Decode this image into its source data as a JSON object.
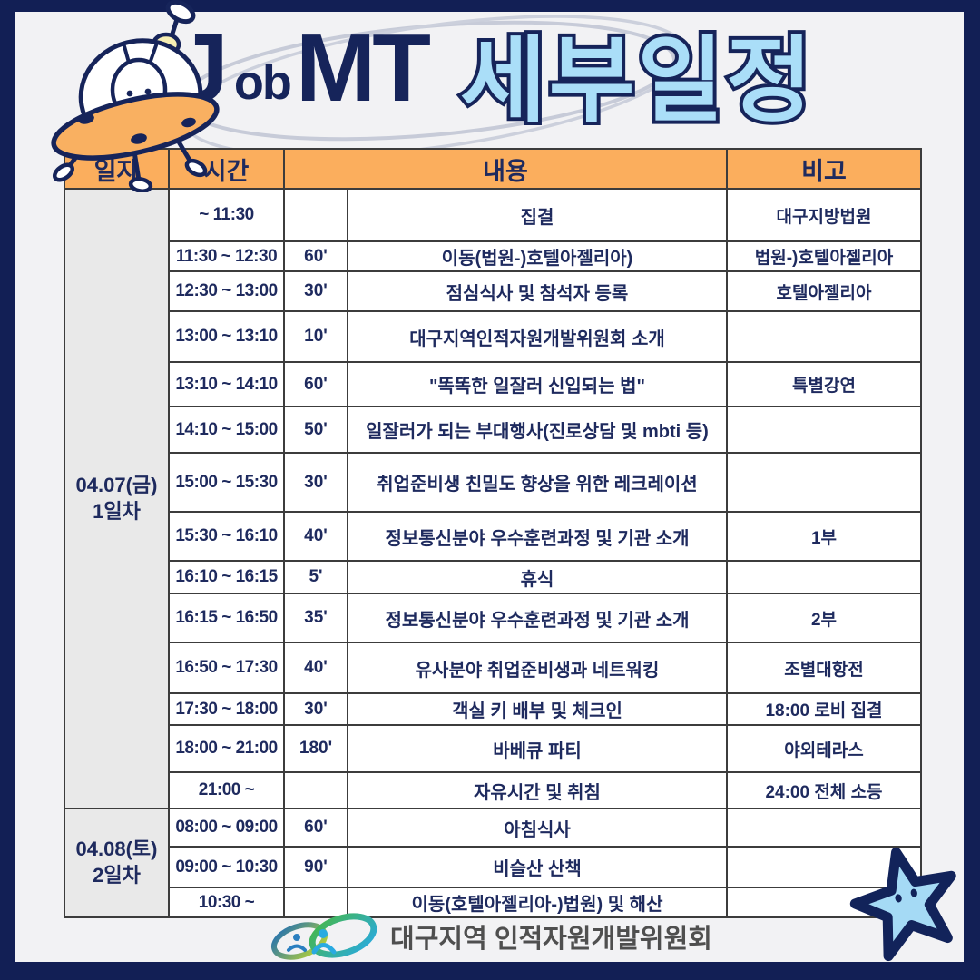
{
  "title": {
    "logo_j": "J",
    "logo_ob": "ob",
    "logo_mt": "MT",
    "subtitle": "세부일정"
  },
  "table": {
    "headers": [
      "일자",
      "시간",
      "내용",
      "비고"
    ],
    "days": [
      {
        "line1": "04.07(금)",
        "line2": "1일차",
        "row_count": 14
      },
      {
        "line1": "04.08(토)",
        "line2": "2일차",
        "row_count": 3
      }
    ],
    "rows": [
      {
        "time": "~ 11:30",
        "duration": "",
        "content": "집결",
        "remark": "대구지방법원"
      },
      {
        "time": "11:30 ~ 12:30",
        "duration": "60'",
        "content": "이동(법원-)호텔아젤리아)",
        "remark": "법원-)호텔아젤리아"
      },
      {
        "time": "12:30 ~ 13:00",
        "duration": "30'",
        "content": "점심식사 및 참석자 등록",
        "remark": "호텔아젤리아"
      },
      {
        "time": "13:00 ~ 13:10",
        "duration": "10'",
        "content": "대구지역인적자원개발위원회 소개",
        "remark": ""
      },
      {
        "time": "13:10 ~ 14:10",
        "duration": "60'",
        "content": "\"똑똑한 일잘러 신입되는 법\"",
        "remark": "특별강연"
      },
      {
        "time": "14:10 ~ 15:00",
        "duration": "50'",
        "content": "일잘러가 되는 부대행사(진로상담 및 mbti 등)",
        "remark": ""
      },
      {
        "time": "15:00 ~ 15:30",
        "duration": "30'",
        "content": "취업준비생 친밀도 향상을 위한 레크레이션",
        "remark": ""
      },
      {
        "time": "15:30 ~ 16:10",
        "duration": "40'",
        "content": "정보통신분야 우수훈련과정 및 기관 소개",
        "remark": "1부"
      },
      {
        "time": "16:10 ~ 16:15",
        "duration": "5'",
        "content": "휴식",
        "remark": ""
      },
      {
        "time": "16:15 ~ 16:50",
        "duration": "35'",
        "content": "정보통신분야 우수훈련과정 및 기관 소개",
        "remark": "2부"
      },
      {
        "time": "16:50 ~ 17:30",
        "duration": "40'",
        "content": "유사분야 취업준비생과 네트워킹",
        "remark": "조별대항전"
      },
      {
        "time": "17:30 ~ 18:00",
        "duration": "30'",
        "content": "객실 키 배부 및 체크인",
        "remark": "18:00 로비 집결"
      },
      {
        "time": "18:00 ~ 21:00",
        "duration": "180'",
        "content": "바베큐 파티",
        "remark": "야외테라스"
      },
      {
        "time": "21:00 ~",
        "duration": "",
        "content": "자유시간 및 취침",
        "remark": "24:00 전체 소등"
      },
      {
        "time": "08:00 ~ 09:00",
        "duration": "60'",
        "content": "아침식사",
        "remark": ""
      },
      {
        "time": "09:00 ~ 10:30",
        "duration": "90'",
        "content": "비슬산 산책",
        "remark": ""
      },
      {
        "time": "10:30 ~",
        "duration": "",
        "content": "이동(호텔아젤리아-)법원) 및 해산",
        "remark": ""
      }
    ]
  },
  "footer": {
    "org_name": "대구지역 인적자원개발위원회"
  },
  "colors": {
    "frame_navy": "#121f55",
    "text_navy": "#1e2a5e",
    "header_orange": "#fbae5d",
    "day_gray": "#e9e9e9",
    "page_bg": "#f2f2f4",
    "bubble_blue": "#aadef8",
    "star_blue": "#a5daf5",
    "ufo_orange": "#f9b061",
    "grid_line": "#3c3c3c",
    "org_text_gray": "#4f4f4f",
    "logo_blue": "#2a7fc0",
    "logo_green": "#46b749",
    "logo_sky": "#29aae1",
    "logo_lime": "#bed730"
  },
  "icons": {
    "ufo": "ufo-illustration",
    "star": "star-illustration",
    "org_logo": "infinity-people-logo"
  }
}
